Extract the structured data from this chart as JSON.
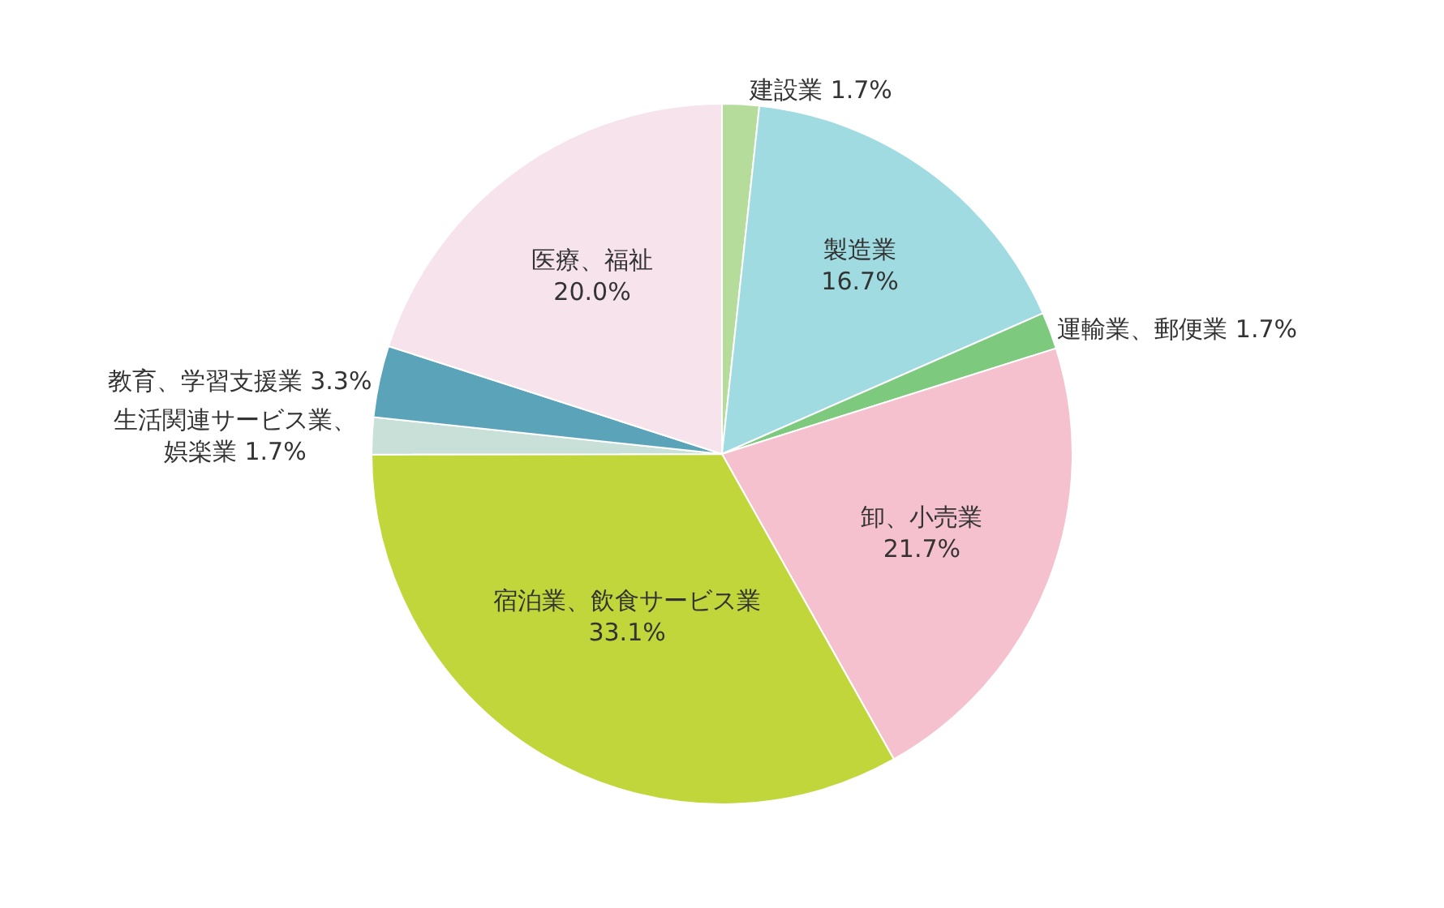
{
  "chart_data": {
    "type": "pie",
    "categories": [
      "建設業",
      "製造業",
      "運輸業、郵便業",
      "卸、小売業",
      "宿泊業、飲食サービス業",
      "生活関連サービス業、娯楽業",
      "教育、学習支援業",
      "医療、福祉"
    ],
    "values": [
      1.7,
      16.7,
      1.7,
      21.7,
      33.1,
      1.7,
      3.3,
      20.0
    ],
    "colors": [
      "#b5dc9a",
      "#9fdbe0",
      "#7dc97e",
      "#f6c1cf",
      "#c0d63a",
      "#c8e0d8",
      "#5ba3b8",
      "#f7e3ec"
    ],
    "value_labels": [
      "1.7%",
      "16.7%",
      "1.7%",
      "21.7%",
      "33.1%",
      "1.7%",
      "3.3%",
      "20.0%"
    ],
    "legend": false
  }
}
